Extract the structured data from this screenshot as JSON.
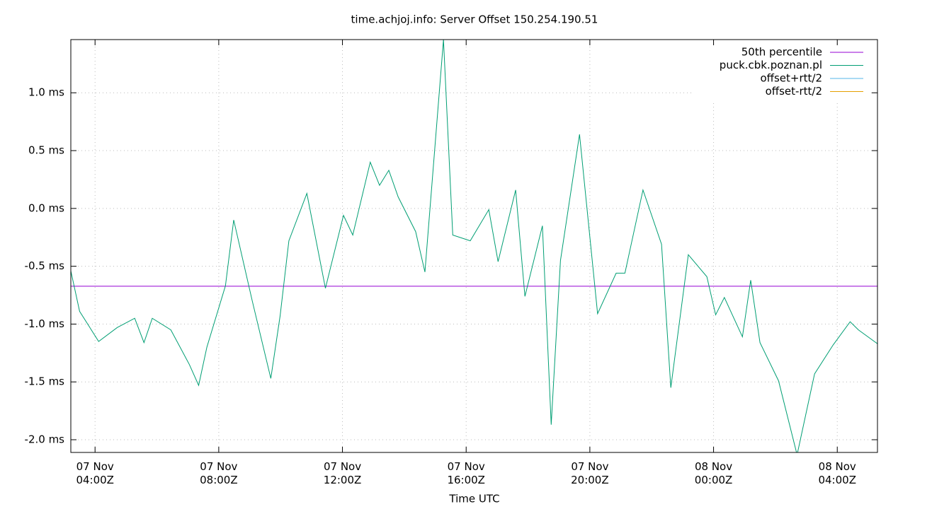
{
  "chart_data": {
    "type": "line",
    "title": "time.achjoj.info: Server Offset 150.254.190.51",
    "x_label": "Time UTC",
    "xlim": [
      "07 Nov 03:13",
      "08 Nov 05:18"
    ],
    "xticks": [
      {
        "value": "07 Nov 04:00",
        "label": "07 Nov\n04:00Z"
      },
      {
        "value": "07 Nov 08:00",
        "label": "07 Nov\n08:00Z"
      },
      {
        "value": "07 Nov 12:00",
        "label": "07 Nov\n12:00Z"
      },
      {
        "value": "07 Nov 16:00",
        "label": "07 Nov\n16:00Z"
      },
      {
        "value": "07 Nov 20:00",
        "label": "07 Nov\n20:00Z"
      },
      {
        "value": "08 Nov 00:00",
        "label": "08 Nov\n00:00Z"
      },
      {
        "value": "08 Nov 04:00",
        "label": "08 Nov\n04:00Z"
      }
    ],
    "ylim": [
      -2.11,
      1.46
    ],
    "yticks": [
      {
        "value": -2,
        "label": "-2.0 ms"
      },
      {
        "value": -1.5,
        "label": "-1.5 ms"
      },
      {
        "value": -1,
        "label": "-1.0 ms"
      },
      {
        "value": -0.5,
        "label": "-0.5 ms"
      },
      {
        "value": 0,
        "label": "0.0 ms"
      },
      {
        "value": 0.5,
        "label": "0.5 ms"
      },
      {
        "value": 1,
        "label": "1.0 ms"
      }
    ],
    "grid": true,
    "legend": "top-right",
    "series": [
      {
        "name": "50th percentile",
        "color": "#9400d3",
        "x": [
          "07 Nov 03:13",
          "08 Nov 05:18"
        ],
        "values": [
          -0.673,
          -0.673
        ]
      },
      {
        "name": "puck.cbk.poznan.pl",
        "color": "#009e73",
        "x": [
          "07 Nov 03:13",
          "07 Nov 03:30",
          "07 Nov 04:07",
          "07 Nov 04:43",
          "07 Nov 05:17",
          "07 Nov 05:35",
          "07 Nov 05:51",
          "07 Nov 06:27",
          "07 Nov 07:03",
          "07 Nov 07:21",
          "07 Nov 07:37",
          "07 Nov 08:13",
          "07 Nov 08:29",
          "07 Nov 09:05",
          "07 Nov 09:41",
          "07 Nov 09:59",
          "07 Nov 10:16",
          "07 Nov 10:51",
          "07 Nov 11:27",
          "07 Nov 12:02",
          "07 Nov 12:20",
          "07 Nov 12:54",
          "07 Nov 13:12",
          "07 Nov 13:30",
          "07 Nov 13:48",
          "07 Nov 14:22",
          "07 Nov 14:40",
          "07 Nov 15:16",
          "07 Nov 15:34",
          "07 Nov 16:08",
          "07 Nov 16:44",
          "07 Nov 17:02",
          "07 Nov 17:36",
          "07 Nov 17:54",
          "07 Nov 18:28",
          "07 Nov 18:45",
          "07 Nov 19:03",
          "07 Nov 19:40",
          "07 Nov 20:15",
          "07 Nov 20:51",
          "07 Nov 21:08",
          "07 Nov 21:43",
          "07 Nov 22:19",
          "07 Nov 22:37",
          "07 Nov 23:11",
          "07 Nov 23:47",
          "08 Nov 00:04",
          "08 Nov 00:21",
          "08 Nov 00:56",
          "08 Nov 01:12",
          "08 Nov 01:30",
          "08 Nov 02:06",
          "08 Nov 02:42",
          "08 Nov 03:16",
          "08 Nov 03:52",
          "08 Nov 04:25",
          "08 Nov 04:41",
          "08 Nov 05:18"
        ],
        "values": [
          -0.54,
          -0.89,
          -1.15,
          -1.03,
          -0.95,
          -1.16,
          -0.95,
          -1.05,
          -1.35,
          -1.53,
          -1.2,
          -0.67,
          -0.1,
          -0.8,
          -1.47,
          -0.93,
          -0.28,
          0.13,
          -0.69,
          -0.06,
          -0.23,
          0.4,
          0.2,
          0.33,
          0.1,
          -0.2,
          -0.55,
          1.46,
          -0.23,
          -0.28,
          -0.01,
          -0.46,
          0.16,
          -0.76,
          -0.15,
          -1.87,
          -0.45,
          0.64,
          -0.91,
          -0.56,
          -0.56,
          0.16,
          -0.31,
          -1.55,
          -0.4,
          -0.59,
          -0.92,
          -0.77,
          -1.11,
          -0.62,
          -1.16,
          -1.49,
          -2.13,
          -1.43,
          -1.18,
          -0.98,
          -1.05,
          -1.17
        ]
      },
      {
        "name": "offset+rtt/2",
        "color": "#56b4e9",
        "x": [],
        "values": []
      },
      {
        "name": "offset-rtt/2",
        "color": "#e69f00",
        "x": [],
        "values": []
      }
    ]
  }
}
